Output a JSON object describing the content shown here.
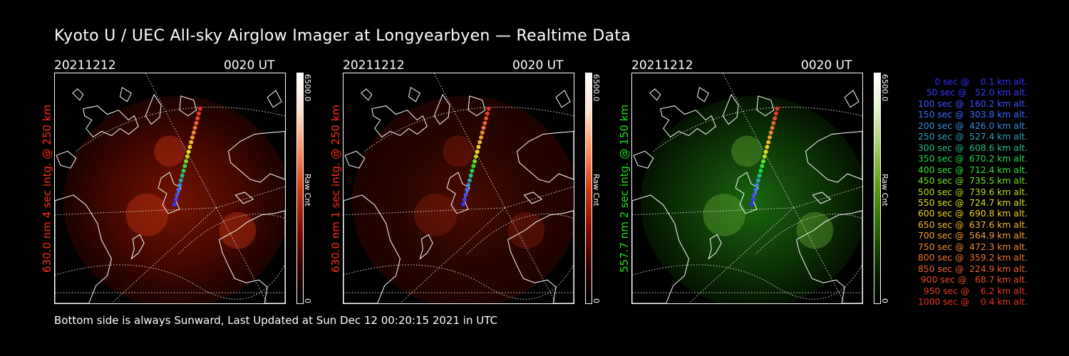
{
  "title": "Kyoto U / UEC All-sky Airglow Imager at Longyearbyen — Realtime Data",
  "footer": "Bottom side is always Sunward, Last Updated at Sun Dec 12 00:20:15 2021 in UTC",
  "panels": [
    {
      "date": "20211212",
      "time": "0020 UT",
      "ylabel": "630.0 nm 4 sec intg. @ 250 km",
      "label_color": "#ff2a1a",
      "cbar_max": "6500.0",
      "cbar_min": "0",
      "cbar_unit": "Raw Cnt",
      "cmap": "red"
    },
    {
      "date": "20211212",
      "time": "0020 UT",
      "ylabel": "630.0 nm 1 sec intg. @ 250 km",
      "label_color": "#ff2a1a",
      "cbar_max": "6500.0",
      "cbar_min": "0",
      "cbar_unit": "Raw Cnt",
      "cmap": "red"
    },
    {
      "date": "20211212",
      "time": "0020 UT",
      "ylabel": "557.7 nm 2 sec intg. @ 150 km",
      "label_color": "#22dd22",
      "cbar_max": "6500.0",
      "cbar_min": "0",
      "cbar_unit": "Raw Cnt",
      "cmap": "green"
    }
  ],
  "legend": [
    {
      "text": "0 sec @    0.1 km alt.",
      "color": "#3030ff"
    },
    {
      "text": "50 sec @   52.0 km alt.",
      "color": "#3a3aff"
    },
    {
      "text": "100 sec @  160.2 km alt.",
      "color": "#4050ff"
    },
    {
      "text": "150 sec @  303.8 km alt.",
      "color": "#3c6cff"
    },
    {
      "text": "200 sec @  426.0 km alt.",
      "color": "#3a8ce0"
    },
    {
      "text": "250 sec @  527.4 km alt.",
      "color": "#30a0b8"
    },
    {
      "text": "300 sec @  608.6 km alt.",
      "color": "#22c080"
    },
    {
      "text": "350 sec @  670.2 km alt.",
      "color": "#20d850"
    },
    {
      "text": "400 sec @  712.4 km alt.",
      "color": "#30e030"
    },
    {
      "text": "450 sec @  735.5 km alt.",
      "color": "#70e020"
    },
    {
      "text": "500 sec @  739.6 km alt.",
      "color": "#b0e018"
    },
    {
      "text": "550 sec @  724.7 km alt.",
      "color": "#e0e020"
    },
    {
      "text": "600 sec @  690.8 km alt.",
      "color": "#f0d020"
    },
    {
      "text": "650 sec @  637.6 km alt.",
      "color": "#f4b830"
    },
    {
      "text": "700 sec @  564.9 km alt.",
      "color": "#f4a030"
    },
    {
      "text": "750 sec @  472.3 km alt.",
      "color": "#f08a30"
    },
    {
      "text": "800 sec @  359.2 km alt.",
      "color": "#f07430"
    },
    {
      "text": "850 sec @  224.9 km alt.",
      "color": "#ec6030"
    },
    {
      "text": "900 sec @   68.7 km alt.",
      "color": "#ea4a2c"
    },
    {
      "text": "950 sec @    6.2 km alt.",
      "color": "#e83a28"
    },
    {
      "text": "1000 sec @    0.4 km alt.",
      "color": "#e83024"
    }
  ]
}
